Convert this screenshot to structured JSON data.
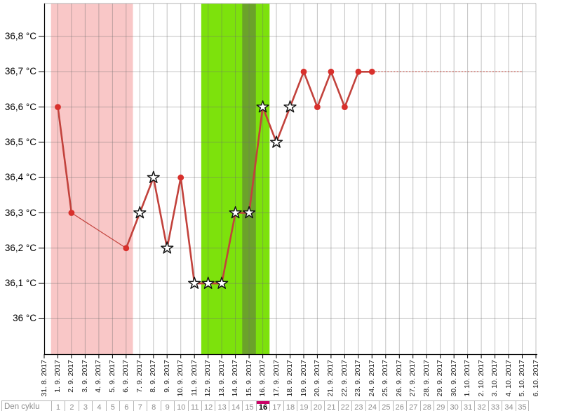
{
  "chart_data": {
    "type": "line",
    "title": "",
    "unit": "°C",
    "grid": true,
    "legend": "none",
    "y_axis": {
      "tick_labels": [
        "36 °C",
        "36,1 °C",
        "36,2 °C",
        "36,3 °C",
        "36,4 °C",
        "36,5 °C",
        "36,6 °C",
        "36,7 °C",
        "36,8 °C"
      ],
      "tick_values": [
        36.0,
        36.1,
        36.2,
        36.3,
        36.4,
        36.5,
        36.6,
        36.7,
        36.8
      ],
      "ylim": [
        35.9,
        36.9
      ]
    },
    "x_axis": {
      "dates": [
        "31. 8. 2017",
        "1. 9. 2017",
        "2. 9. 2017",
        "3. 9. 2017",
        "4. 9. 2017",
        "5. 9. 2017",
        "6. 9. 2017",
        "7. 9. 2017",
        "8. 9. 2017",
        "9. 9. 2017",
        "10. 9. 2017",
        "11. 9. 2017",
        "12. 9. 2017",
        "13. 9. 2017",
        "14. 9. 2017",
        "15. 9. 2017",
        "16. 9. 2017",
        "17. 9. 2017",
        "18. 9. 2017",
        "19. 9. 2017",
        "20. 9. 2017",
        "21. 9. 2017",
        "22. 9. 2017",
        "23. 9. 2017",
        "24. 9. 2017",
        "25. 9. 2017",
        "26. 9. 2017",
        "27. 9. 2017",
        "28. 9. 2017",
        "29. 9. 2017",
        "30. 9. 2017",
        "1. 10. 2017",
        "2. 10. 2017",
        "3. 10. 2017",
        "4. 10. 2017",
        "5. 10. 2017",
        "6. 10. 2017"
      ]
    },
    "cycle_day_row": {
      "label": "Den cyklu",
      "days": [
        1,
        2,
        3,
        4,
        5,
        6,
        7,
        8,
        9,
        10,
        11,
        12,
        13,
        14,
        15,
        16,
        17,
        18,
        19,
        20,
        21,
        22,
        23,
        24,
        25,
        26,
        27,
        28,
        29,
        30,
        31,
        32,
        33,
        34,
        35
      ],
      "selected_day": 16
    },
    "points": [
      {
        "cycle_day": 1,
        "date": "1. 9. 2017",
        "temp": 36.6,
        "marker": "dot"
      },
      {
        "cycle_day": 2,
        "date": "2. 9. 2017",
        "temp": 36.3,
        "marker": "dot"
      },
      {
        "cycle_day": 6,
        "date": "6. 9. 2017",
        "temp": 36.2,
        "marker": "dot"
      },
      {
        "cycle_day": 7,
        "date": "7. 9. 2017",
        "temp": 36.3,
        "marker": "star"
      },
      {
        "cycle_day": 8,
        "date": "8. 9. 2017",
        "temp": 36.4,
        "marker": "star"
      },
      {
        "cycle_day": 9,
        "date": "9. 9. 2017",
        "temp": 36.2,
        "marker": "star"
      },
      {
        "cycle_day": 10,
        "date": "10. 9. 2017",
        "temp": 36.4,
        "marker": "dot"
      },
      {
        "cycle_day": 11,
        "date": "11. 9. 2017",
        "temp": 36.1,
        "marker": "star"
      },
      {
        "cycle_day": 12,
        "date": "12. 9. 2017",
        "temp": 36.1,
        "marker": "star"
      },
      {
        "cycle_day": 13,
        "date": "13. 9. 2017",
        "temp": 36.1,
        "marker": "star"
      },
      {
        "cycle_day": 14,
        "date": "14. 9. 2017",
        "temp": 36.3,
        "marker": "star"
      },
      {
        "cycle_day": 15,
        "date": "15. 9. 2017",
        "temp": 36.3,
        "marker": "star"
      },
      {
        "cycle_day": 16,
        "date": "16. 9. 2017",
        "temp": 36.6,
        "marker": "star"
      },
      {
        "cycle_day": 17,
        "date": "17. 9. 2017",
        "temp": 36.5,
        "marker": "star"
      },
      {
        "cycle_day": 18,
        "date": "18. 9. 2017",
        "temp": 36.6,
        "marker": "star"
      },
      {
        "cycle_day": 19,
        "date": "19. 9. 2017",
        "temp": 36.7,
        "marker": "dot"
      },
      {
        "cycle_day": 20,
        "date": "20. 9. 2017",
        "temp": 36.6,
        "marker": "dot"
      },
      {
        "cycle_day": 21,
        "date": "21. 9. 2017",
        "temp": 36.7,
        "marker": "dot"
      },
      {
        "cycle_day": 22,
        "date": "22. 9. 2017",
        "temp": 36.6,
        "marker": "dot"
      },
      {
        "cycle_day": 23,
        "date": "23. 9. 2017",
        "temp": 36.7,
        "marker": "dot"
      },
      {
        "cycle_day": 24,
        "date": "24. 9. 2017",
        "temp": 36.7,
        "marker": "dot"
      }
    ],
    "missing_days": [
      3,
      4,
      5
    ],
    "interpolated_segment": {
      "from_day": 2,
      "to_day": 6
    },
    "prediction_line": {
      "from_day": 24,
      "to_day": 35,
      "temp": 36.7,
      "style": "dotted"
    },
    "bands": [
      {
        "name": "menstruation",
        "from_day": 1,
        "to_day": 6,
        "color": "#f9c7c7"
      },
      {
        "name": "fertile-window",
        "from_day": 12,
        "to_day": 16,
        "color": "#7de20c"
      },
      {
        "name": "ovulation",
        "from_day": 15,
        "to_day": 15,
        "color": "#6ba32a"
      }
    ],
    "colors": {
      "line": "#c2423c",
      "prediction_line": "#cb6a62",
      "dot": "#d8302c",
      "star_fill": "#ffffff",
      "star_stroke": "#141414",
      "selected_day_bar": "#cc0066",
      "grid": "#c8c8c8",
      "axis": "#000000"
    }
  }
}
